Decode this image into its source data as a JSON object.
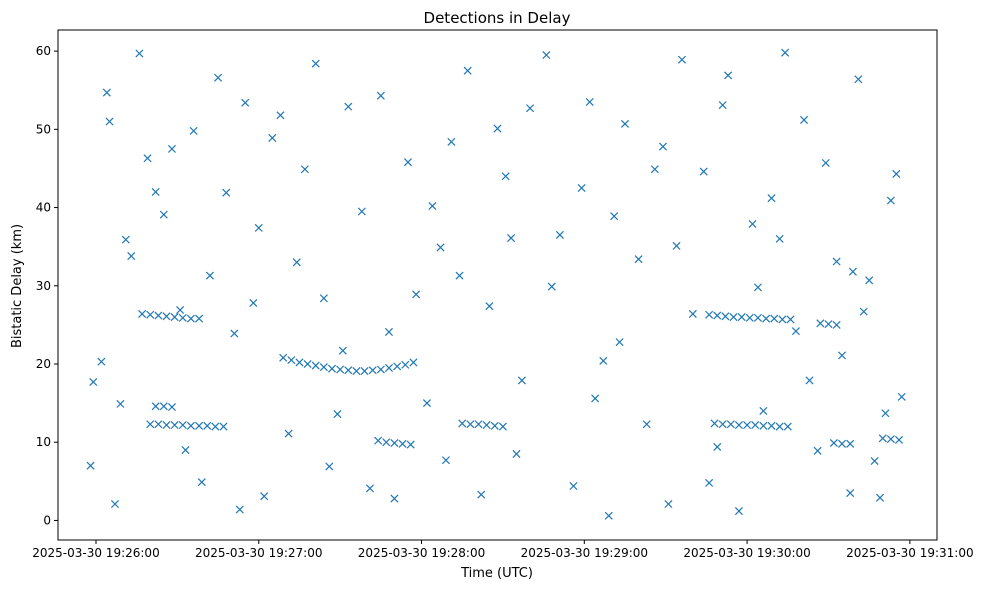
{
  "chart_data": {
    "type": "scatter",
    "title": "Detections in Delay",
    "xlabel": "Time (UTC)",
    "ylabel": "Bistatic Delay (km)",
    "marker": "x",
    "color": "#1f77b4",
    "grid": false,
    "legend": "none",
    "x_unit": "UTC datetime",
    "xlim": [
      "2025-03-30 19:25:46",
      "2025-03-30 19:31:10"
    ],
    "ylim": [
      -2.5,
      62.7
    ],
    "x_ticks": [
      "2025-03-30 19:26:00",
      "2025-03-30 19:27:00",
      "2025-03-30 19:28:00",
      "2025-03-30 19:29:00",
      "2025-03-30 19:30:00",
      "2025-03-30 19:31:00"
    ],
    "y_ticks": [
      "0",
      "10",
      "20",
      "30",
      "40",
      "50",
      "60"
    ],
    "tracks": [
      {
        "x": [
          "19:26:17",
          "19:26:20",
          "19:26:23",
          "19:26:26",
          "19:26:29",
          "19:26:32",
          "19:26:35",
          "19:26:38"
        ],
        "y": [
          26.4,
          26.3,
          26.2,
          26.1,
          26.0,
          25.9,
          25.8,
          25.8
        ]
      },
      {
        "x": [
          "19:26:20",
          "19:26:23",
          "19:26:26",
          "19:26:29",
          "19:26:32",
          "19:26:35",
          "19:26:38",
          "19:26:41",
          "19:26:44",
          "19:26:47"
        ],
        "y": [
          12.3,
          12.3,
          12.2,
          12.2,
          12.2,
          12.1,
          12.1,
          12.1,
          12.0,
          12.0
        ]
      },
      {
        "x": [
          "19:26:22",
          "19:26:25",
          "19:26:28"
        ],
        "y": [
          14.6,
          14.6,
          14.5
        ]
      },
      {
        "x": [
          "19:27:09",
          "19:27:12",
          "19:27:15",
          "19:27:18",
          "19:27:21",
          "19:27:24",
          "19:27:27",
          "19:27:30",
          "19:27:33",
          "19:27:36",
          "19:27:39"
        ],
        "y": [
          20.8,
          20.5,
          20.2,
          20.0,
          19.8,
          19.6,
          19.4,
          19.3,
          19.2,
          19.1,
          19.1
        ]
      },
      {
        "x": [
          "19:27:42",
          "19:27:45",
          "19:27:48",
          "19:27:51",
          "19:27:54",
          "19:27:57"
        ],
        "y": [
          19.2,
          19.3,
          19.5,
          19.7,
          19.9,
          20.2
        ]
      },
      {
        "x": [
          "19:27:44",
          "19:27:47",
          "19:27:50",
          "19:27:53",
          "19:27:56"
        ],
        "y": [
          10.2,
          10.0,
          9.9,
          9.8,
          9.7
        ]
      },
      {
        "x": [
          "19:28:15",
          "19:28:18",
          "19:28:21",
          "19:28:24",
          "19:28:27",
          "19:28:30"
        ],
        "y": [
          12.4,
          12.3,
          12.3,
          12.2,
          12.1,
          12.0
        ]
      },
      {
        "x": [
          "19:29:46",
          "19:29:49",
          "19:29:52",
          "19:29:55",
          "19:29:58",
          "19:30:01",
          "19:30:04",
          "19:30:07",
          "19:30:10",
          "19:30:13",
          "19:30:16"
        ],
        "y": [
          26.3,
          26.2,
          26.1,
          26.0,
          26.0,
          25.9,
          25.9,
          25.8,
          25.8,
          25.7,
          25.7
        ]
      },
      {
        "x": [
          "19:29:48",
          "19:29:51",
          "19:29:54",
          "19:29:57",
          "19:30:00",
          "19:30:03",
          "19:30:06",
          "19:30:09",
          "19:30:12",
          "19:30:15"
        ],
        "y": [
          12.4,
          12.3,
          12.3,
          12.2,
          12.2,
          12.2,
          12.1,
          12.1,
          12.0,
          12.0
        ]
      },
      {
        "x": [
          "19:30:27",
          "19:30:30",
          "19:30:33"
        ],
        "y": [
          25.2,
          25.1,
          25.0
        ]
      },
      {
        "x": [
          "19:30:32",
          "19:30:35",
          "19:30:38"
        ],
        "y": [
          9.9,
          9.8,
          9.8
        ]
      },
      {
        "x": [
          "19:30:50",
          "19:30:53",
          "19:30:56"
        ],
        "y": [
          10.5,
          10.4,
          10.3
        ]
      }
    ],
    "scatter": {
      "x": [
        "19:25:59",
        "19:26:05",
        "19:26:11",
        "19:26:04",
        "19:25:58",
        "19:26:09",
        "19:26:16",
        "19:26:02",
        "19:26:13",
        "19:26:07",
        "19:26:19",
        "19:26:25",
        "19:26:31",
        "19:26:36",
        "19:26:42",
        "19:26:45",
        "19:26:28",
        "19:26:33",
        "19:26:22",
        "19:26:39",
        "19:26:51",
        "19:26:55",
        "19:27:02",
        "19:27:05",
        "19:26:48",
        "19:26:58",
        "19:27:08",
        "19:27:11",
        "19:26:53",
        "19:27:00",
        "19:27:17",
        "19:27:21",
        "19:27:26",
        "19:27:29",
        "19:27:33",
        "19:27:38",
        "19:27:41",
        "19:27:24",
        "19:27:31",
        "19:27:14",
        "19:27:45",
        "19:27:50",
        "19:27:55",
        "19:28:02",
        "19:28:07",
        "19:28:11",
        "19:27:58",
        "19:28:04",
        "19:27:48",
        "19:28:09",
        "19:28:17",
        "19:28:22",
        "19:28:28",
        "19:28:33",
        "19:28:37",
        "19:28:40",
        "19:28:25",
        "19:28:31",
        "19:28:14",
        "19:28:35",
        "19:28:46",
        "19:28:51",
        "19:28:56",
        "19:29:02",
        "19:29:07",
        "19:29:11",
        "19:28:59",
        "19:29:04",
        "19:28:48",
        "19:29:09",
        "19:29:15",
        "19:29:20",
        "19:29:26",
        "19:29:31",
        "19:29:36",
        "19:29:40",
        "19:29:23",
        "19:29:29",
        "19:29:13",
        "19:29:34",
        "19:29:44",
        "19:29:49",
        "19:29:53",
        "19:29:57",
        "19:30:02",
        "19:30:06",
        "19:29:51",
        "19:30:04",
        "19:29:46",
        "19:30:09",
        "19:30:14",
        "19:30:18",
        "19:30:23",
        "19:30:29",
        "19:30:33",
        "19:30:38",
        "19:30:21",
        "19:30:26",
        "19:30:12",
        "19:30:35",
        "19:30:41",
        "19:30:45",
        "19:30:49",
        "19:30:53",
        "19:30:57",
        "19:30:51",
        "19:30:43",
        "19:30:55",
        "19:30:47",
        "19:30:39"
      ],
      "y": [
        17.7,
        51.0,
        35.9,
        54.7,
        7.0,
        14.9,
        59.7,
        20.3,
        33.8,
        2.1,
        46.3,
        39.1,
        26.9,
        49.8,
        31.3,
        56.6,
        47.5,
        9.0,
        42.0,
        4.9,
        23.9,
        53.4,
        3.1,
        48.9,
        41.9,
        27.8,
        51.8,
        11.1,
        1.4,
        37.4,
        44.9,
        58.4,
        6.9,
        13.6,
        52.9,
        39.5,
        4.1,
        28.4,
        21.7,
        33.0,
        54.3,
        2.8,
        45.8,
        15.0,
        34.9,
        48.4,
        28.9,
        40.2,
        24.1,
        7.7,
        57.5,
        3.3,
        50.1,
        36.1,
        17.9,
        52.7,
        27.4,
        44.0,
        31.3,
        8.5,
        59.5,
        36.5,
        4.4,
        53.5,
        20.4,
        38.9,
        42.5,
        15.6,
        29.9,
        0.6,
        50.7,
        33.4,
        44.9,
        2.1,
        58.9,
        26.4,
        12.3,
        47.8,
        22.8,
        35.1,
        44.6,
        9.4,
        56.9,
        1.2,
        37.9,
        14.0,
        53.1,
        29.8,
        4.8,
        41.2,
        59.8,
        24.2,
        17.9,
        45.7,
        33.1,
        3.5,
        51.2,
        8.9,
        36.0,
        21.1,
        56.4,
        30.7,
        2.9,
        40.9,
        15.8,
        13.7,
        26.7,
        44.3,
        7.6,
        31.8
      ]
    }
  }
}
